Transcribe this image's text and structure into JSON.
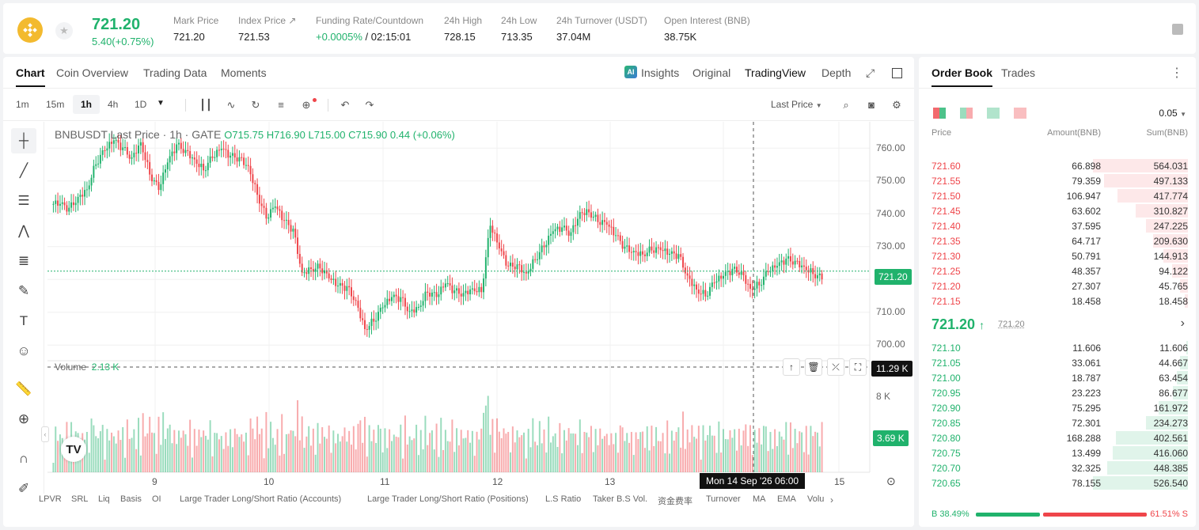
{
  "header": {
    "last_price": "721.20",
    "change": "5.40(+0.75%)",
    "stats": [
      {
        "label": "Mark Price",
        "value": "721.20"
      },
      {
        "label": "Index Price ↗",
        "value": "721.53"
      },
      {
        "label": "Funding Rate/Countdown",
        "value_green": "+0.0005%",
        "value": " / 02:15:01"
      },
      {
        "label": "24h High",
        "value": "728.15"
      },
      {
        "label": "24h Low",
        "value": "713.35"
      },
      {
        "label": "24h Turnover (USDT)",
        "value": "37.04M"
      },
      {
        "label": "Open Interest (BNB)",
        "value": "38.75K"
      }
    ]
  },
  "chart_tabs": [
    "Chart",
    "Coin Overview",
    "Trading Data",
    "Moments"
  ],
  "view_tabs": [
    "Insights",
    "Original",
    "TradingView",
    "Depth"
  ],
  "timeframes": [
    "1m",
    "15m",
    "1h",
    "4h",
    "1D"
  ],
  "price_type": "Last Price",
  "legend": {
    "symbol": "BNBUSDT Last Price · 1h · GATE",
    "ohlc": "O715.75  H716.90  L715.00  C715.90  0.44 (+0.06%)"
  },
  "volume_label": {
    "name": "Volume",
    "value": "2.13 K"
  },
  "chart_data": {
    "type": "candlestick",
    "yticks": [
      "760.00",
      "750.00",
      "740.00",
      "730.00",
      "720.00",
      "710.00",
      "700.00"
    ],
    "ylim": [
      697,
      763
    ],
    "xticks": [
      "9",
      "10",
      "11",
      "12",
      "13",
      "15"
    ],
    "volume_ticks": [
      "12 K",
      "8 K",
      "4 K"
    ],
    "current_price": "721.20",
    "crosshair_volume": "11.29 K",
    "current_volume": "3.69 K",
    "crosshair_date": "Mon 14 Sep '26   06:00",
    "close_path": [
      740,
      738,
      741,
      744,
      752,
      756,
      758,
      755,
      752,
      757,
      749,
      745,
      752,
      756,
      754,
      752,
      750,
      754,
      756,
      753,
      752,
      750,
      743,
      737,
      740,
      735,
      732,
      720,
      722,
      723,
      720,
      717,
      716,
      712,
      705,
      708,
      712,
      714,
      713,
      709,
      711,
      716,
      715,
      718,
      715,
      714,
      716,
      716,
      735,
      728,
      722,
      722,
      720,
      725,
      729,
      733,
      733,
      731,
      737,
      738,
      736,
      735,
      731,
      727,
      726,
      726,
      728,
      728,
      726,
      725,
      719,
      716,
      715,
      719,
      720,
      721,
      720,
      716,
      718,
      722,
      723,
      724,
      723,
      722,
      721,
      720
    ]
  },
  "indicators": [
    "LPVR",
    "SRL",
    "Liq",
    "Basis",
    "OI",
    "Large Trader Long/Short Ratio (Accounts)",
    "Large Trader Long/Short Ratio (Positions)",
    "L.S Ratio",
    "Taker B.S Vol.",
    "资金费率",
    "Turnover",
    "MA",
    "EMA",
    "Volu"
  ],
  "orderbook": {
    "tabs": [
      "Order Book",
      "Trades"
    ],
    "tick": "0.05",
    "headers": [
      "Price",
      "Amount(BNB)",
      "Sum(BNB)"
    ],
    "asks": [
      {
        "price": "721.60",
        "amount": "66.898",
        "sum": "564.031",
        "depth": 1.0
      },
      {
        "price": "721.55",
        "amount": "79.359",
        "sum": "497.133",
        "depth": 0.88
      },
      {
        "price": "721.50",
        "amount": "106.947",
        "sum": "417.774",
        "depth": 0.74
      },
      {
        "price": "721.45",
        "amount": "63.602",
        "sum": "310.827",
        "depth": 0.55
      },
      {
        "price": "721.40",
        "amount": "37.595",
        "sum": "247.225",
        "depth": 0.44
      },
      {
        "price": "721.35",
        "amount": "64.717",
        "sum": "209.630",
        "depth": 0.37
      },
      {
        "price": "721.30",
        "amount": "50.791",
        "sum": "144.913",
        "depth": 0.26
      },
      {
        "price": "721.25",
        "amount": "48.357",
        "sum": "94.122",
        "depth": 0.17
      },
      {
        "price": "721.20",
        "amount": "27.307",
        "sum": "45.765",
        "depth": 0.08
      },
      {
        "price": "721.15",
        "amount": "18.458",
        "sum": "18.458",
        "depth": 0.03
      }
    ],
    "mid_price": "721.20",
    "mid_mark": "721.20",
    "bids": [
      {
        "price": "721.10",
        "amount": "11.606",
        "sum": "11.606",
        "depth": 0.02
      },
      {
        "price": "721.05",
        "amount": "33.061",
        "sum": "44.667",
        "depth": 0.08
      },
      {
        "price": "721.00",
        "amount": "18.787",
        "sum": "63.454",
        "depth": 0.12
      },
      {
        "price": "720.95",
        "amount": "23.223",
        "sum": "86.677",
        "depth": 0.16
      },
      {
        "price": "720.90",
        "amount": "75.295",
        "sum": "161.972",
        "depth": 0.31
      },
      {
        "price": "720.85",
        "amount": "72.301",
        "sum": "234.273",
        "depth": 0.44
      },
      {
        "price": "720.80",
        "amount": "168.288",
        "sum": "402.561",
        "depth": 0.76
      },
      {
        "price": "720.75",
        "amount": "13.499",
        "sum": "416.060",
        "depth": 0.79
      },
      {
        "price": "720.70",
        "amount": "32.325",
        "sum": "448.385",
        "depth": 0.85
      },
      {
        "price": "720.65",
        "amount": "78.155",
        "sum": "526.540",
        "depth": 1.0
      }
    ],
    "buy_ratio": "B 38.49%",
    "sell_ratio": "61.51% S",
    "buy_fraction": 0.3849
  },
  "colors": {
    "up": "#20b26c",
    "down": "#ef454a"
  }
}
